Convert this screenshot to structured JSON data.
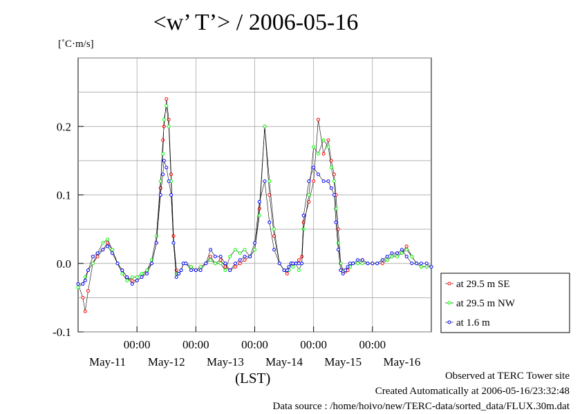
{
  "title": "<w’ T’> / 2006-05-16",
  "chart_data": {
    "type": "line",
    "ylabel": "[˚C·m/s]",
    "xlabel": "(LST)",
    "ylim": [
      -0.1,
      0.3
    ],
    "yticks": [
      -0.1,
      0.0,
      0.1,
      0.2
    ],
    "ytick_labels": [
      "-0.1",
      "0.0",
      "0.1",
      "0.2"
    ],
    "xlim": [
      -1.0,
      5.0
    ],
    "x_unit": "days from 2006-05-11 00:00 LST",
    "xticks": [
      0,
      1,
      2,
      3,
      4
    ],
    "xtick_labels": [
      "00:00",
      "00:00",
      "00:00",
      "00:00",
      "00:00"
    ],
    "date_labels": [
      "May-11",
      "May-12",
      "May-13",
      "May-14",
      "May-15",
      "May-16"
    ],
    "grid": true,
    "legend_position": "right",
    "series": [
      {
        "name": "at 29.5 m SE",
        "color": "#ff0000",
        "x": [
          -1.0,
          -0.92,
          -0.88,
          -0.83,
          -0.75,
          -0.67,
          -0.58,
          -0.5,
          -0.42,
          -0.33,
          -0.25,
          -0.17,
          -0.08,
          0.0,
          0.08,
          0.17,
          0.25,
          0.33,
          0.4,
          0.44,
          0.46,
          0.5,
          0.54,
          0.58,
          0.62,
          0.67,
          0.71,
          0.75,
          0.79,
          0.83,
          0.92,
          1.0,
          1.08,
          1.17,
          1.25,
          1.33,
          1.42,
          1.5,
          1.58,
          1.67,
          1.75,
          1.83,
          1.92,
          2.0,
          2.08,
          2.17,
          2.25,
          2.33,
          2.42,
          2.5,
          2.55,
          2.58,
          2.62,
          2.65,
          2.7,
          2.75,
          2.8,
          2.83,
          2.92,
          3.0,
          3.08,
          3.17,
          3.25,
          3.3,
          3.35,
          3.38,
          3.42,
          3.46,
          3.5,
          3.54,
          3.58,
          3.62,
          3.67,
          3.75,
          3.83,
          3.92,
          4.0,
          4.08,
          4.17,
          4.25,
          4.33,
          4.42,
          4.5,
          4.58,
          4.67,
          4.75,
          4.83,
          4.92,
          5.0
        ],
        "y": [
          -0.03,
          -0.05,
          -0.07,
          -0.04,
          0.0,
          0.01,
          0.02,
          0.03,
          0.02,
          0.0,
          -0.01,
          -0.02,
          -0.025,
          -0.025,
          -0.02,
          -0.01,
          0.0,
          0.03,
          0.11,
          0.18,
          0.2,
          0.24,
          0.21,
          0.13,
          0.04,
          -0.01,
          -0.015,
          -0.01,
          0.0,
          0.0,
          -0.005,
          -0.01,
          -0.005,
          0.0,
          0.01,
          0.0,
          0.005,
          -0.005,
          -0.01,
          -0.005,
          0.0,
          0.005,
          0.01,
          0.02,
          0.08,
          0.2,
          0.1,
          0.04,
          0.0,
          -0.01,
          -0.015,
          -0.01,
          0.0,
          0.0,
          0.0,
          0.005,
          0.01,
          0.06,
          0.09,
          0.12,
          0.21,
          0.16,
          0.18,
          0.15,
          0.13,
          0.1,
          0.05,
          0.0,
          -0.01,
          -0.012,
          -0.01,
          -0.005,
          0.0,
          0.0,
          0.005,
          0.0,
          0.0,
          0.0,
          0.0,
          0.005,
          0.01,
          0.015,
          0.015,
          0.025,
          0.01,
          0.0,
          -0.005,
          -0.005,
          -0.005
        ]
      },
      {
        "name": "at 29.5 m NW",
        "color": "#00ff00",
        "x": [
          -1.0,
          -0.92,
          -0.88,
          -0.83,
          -0.75,
          -0.67,
          -0.58,
          -0.5,
          -0.42,
          -0.33,
          -0.25,
          -0.17,
          -0.08,
          0.0,
          0.08,
          0.17,
          0.25,
          0.33,
          0.4,
          0.44,
          0.46,
          0.5,
          0.54,
          0.58,
          0.62,
          0.67,
          0.71,
          0.75,
          0.79,
          0.83,
          0.92,
          1.0,
          1.08,
          1.17,
          1.25,
          1.33,
          1.42,
          1.5,
          1.58,
          1.67,
          1.75,
          1.83,
          1.92,
          2.0,
          2.08,
          2.17,
          2.25,
          2.33,
          2.42,
          2.5,
          2.55,
          2.58,
          2.62,
          2.65,
          2.7,
          2.75,
          2.8,
          2.83,
          2.92,
          3.0,
          3.08,
          3.17,
          3.25,
          3.3,
          3.35,
          3.38,
          3.42,
          3.46,
          3.5,
          3.54,
          3.58,
          3.62,
          3.67,
          3.75,
          3.83,
          3.92,
          4.0,
          4.08,
          4.17,
          4.25,
          4.33,
          4.42,
          4.5,
          4.58,
          4.67,
          4.75,
          4.83,
          4.92,
          5.0
        ],
        "y": [
          -0.035,
          -0.03,
          -0.02,
          -0.01,
          0.0,
          0.015,
          0.03,
          0.035,
          0.02,
          0.0,
          -0.015,
          -0.025,
          -0.02,
          -0.02,
          -0.015,
          -0.01,
          0.005,
          0.04,
          0.12,
          0.16,
          0.21,
          0.23,
          0.2,
          0.12,
          0.03,
          -0.015,
          -0.015,
          -0.01,
          0.0,
          0.0,
          -0.005,
          -0.01,
          -0.005,
          0.0,
          0.005,
          0.0,
          0.0,
          -0.01,
          0.01,
          0.02,
          0.015,
          0.02,
          0.01,
          0.02,
          0.07,
          0.2,
          0.12,
          0.05,
          0.0,
          -0.01,
          -0.01,
          -0.01,
          0.0,
          -0.005,
          0.0,
          -0.01,
          0.0,
          0.05,
          0.1,
          0.17,
          0.16,
          0.18,
          0.17,
          0.14,
          0.12,
          0.08,
          0.03,
          0.0,
          -0.012,
          -0.01,
          -0.005,
          -0.005,
          0.0,
          0.0,
          0.0,
          0.0,
          0.0,
          0.0,
          0.005,
          0.005,
          0.01,
          0.01,
          0.015,
          0.02,
          0.01,
          0.0,
          -0.005,
          -0.005,
          -0.005
        ]
      },
      {
        "name": "at 1.6 m",
        "color": "#0000ff",
        "x": [
          -1.0,
          -0.92,
          -0.88,
          -0.83,
          -0.75,
          -0.67,
          -0.58,
          -0.5,
          -0.42,
          -0.33,
          -0.25,
          -0.17,
          -0.08,
          0.0,
          0.08,
          0.17,
          0.25,
          0.33,
          0.4,
          0.44,
          0.46,
          0.5,
          0.54,
          0.58,
          0.62,
          0.67,
          0.71,
          0.75,
          0.79,
          0.83,
          0.92,
          1.0,
          1.08,
          1.17,
          1.25,
          1.33,
          1.42,
          1.5,
          1.58,
          1.67,
          1.75,
          1.83,
          1.92,
          2.0,
          2.08,
          2.17,
          2.25,
          2.33,
          2.42,
          2.5,
          2.55,
          2.58,
          2.62,
          2.65,
          2.7,
          2.75,
          2.8,
          2.83,
          2.92,
          3.0,
          3.08,
          3.17,
          3.25,
          3.3,
          3.35,
          3.38,
          3.42,
          3.46,
          3.5,
          3.54,
          3.58,
          3.62,
          3.67,
          3.75,
          3.83,
          3.92,
          4.0,
          4.08,
          4.17,
          4.25,
          4.33,
          4.42,
          4.5,
          4.58,
          4.67,
          4.75,
          4.83,
          4.92,
          5.0
        ],
        "y": [
          -0.03,
          -0.03,
          -0.025,
          -0.01,
          0.01,
          0.015,
          0.02,
          0.025,
          0.015,
          0.0,
          -0.01,
          -0.02,
          -0.03,
          -0.025,
          -0.02,
          -0.015,
          0.0,
          0.03,
          0.1,
          0.13,
          0.15,
          0.14,
          0.12,
          0.1,
          0.03,
          -0.02,
          -0.015,
          -0.01,
          0.0,
          0.0,
          -0.01,
          -0.01,
          -0.01,
          0.0,
          0.02,
          0.01,
          0.01,
          0.0,
          -0.01,
          0.0,
          0.005,
          0.01,
          0.01,
          0.03,
          0.09,
          0.12,
          0.06,
          0.02,
          0.0,
          -0.01,
          -0.01,
          -0.005,
          0.0,
          0.0,
          0.0,
          0.0,
          0.0,
          0.07,
          0.12,
          0.14,
          0.13,
          0.12,
          0.12,
          0.11,
          0.1,
          0.06,
          0.02,
          -0.01,
          -0.015,
          -0.01,
          -0.005,
          0.0,
          0.0,
          0.005,
          0.005,
          0.0,
          0.0,
          0.0,
          0.005,
          0.01,
          0.015,
          0.015,
          0.02,
          0.01,
          0.0,
          0.0,
          0.0,
          0.0,
          -0.005
        ]
      }
    ]
  },
  "footer": {
    "line1": "Observed at TERC Tower site",
    "line2": "Created Automatically at 2006-05-16/23:32:48",
    "line3": "Data source : /home/hoivo/new/TERC-data/sorted_data/FLUX.30m.dat"
  }
}
